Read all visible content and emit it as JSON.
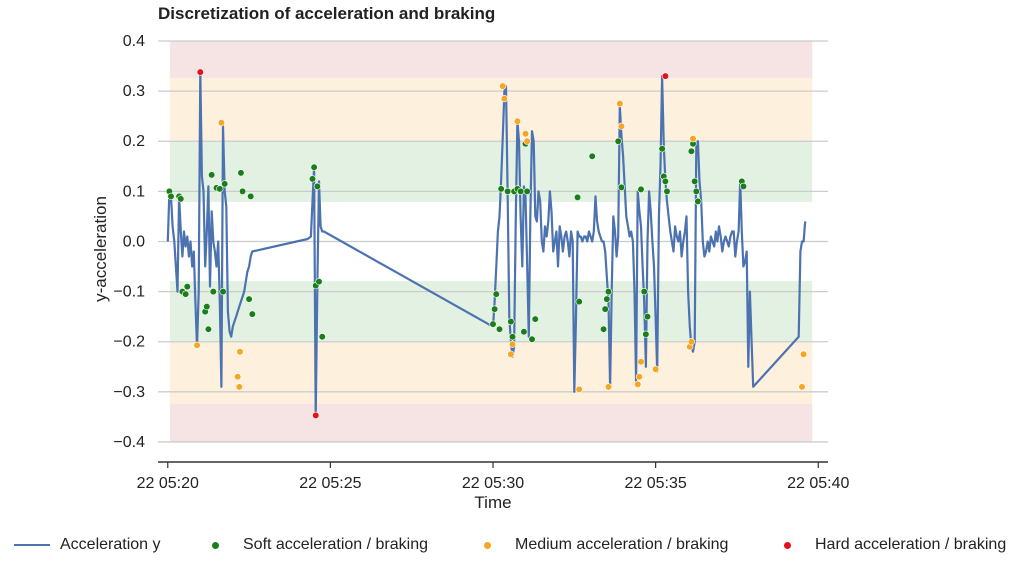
{
  "chart_data": {
    "type": "line",
    "title": "Discretization of acceleration and braking",
    "xlabel": "Time",
    "ylabel": "y-acceleration",
    "xlim_min": [
      -0.3,
      20.3
    ],
    "ylim": [
      -0.44,
      0.41
    ],
    "x_ticks": [
      0,
      5,
      10,
      15,
      20
    ],
    "x_tick_labels": [
      "22 05:20",
      "22 05:25",
      "22 05:30",
      "22 05:35",
      "22 05:40"
    ],
    "y_ticks": [
      0.4,
      0.3,
      0.2,
      0.1,
      0.0,
      -0.1,
      -0.2,
      -0.3,
      -0.4
    ],
    "y_tick_labels": [
      "0.4",
      "0.3",
      "0.2",
      "0.1",
      "0.0",
      "−0.1",
      "−0.2",
      "−0.3",
      "−0.4"
    ],
    "grid": "horizontal",
    "bands": [
      {
        "level": "hard",
        "y0": 0.325,
        "y1": 0.4,
        "color": "#f6e3e3"
      },
      {
        "level": "medium",
        "y0": 0.2,
        "y1": 0.325,
        "color": "#fdf1de"
      },
      {
        "level": "soft",
        "y0": 0.08,
        "y1": 0.2,
        "color": "#e3f1e2"
      },
      {
        "level": "soft",
        "y0": -0.2,
        "y1": -0.08,
        "color": "#e3f1e2"
      },
      {
        "level": "medium",
        "y0": -0.325,
        "y1": -0.2,
        "color": "#fdf1de"
      },
      {
        "level": "hard",
        "y0": -0.4,
        "y1": -0.325,
        "color": "#f6e3e3"
      }
    ],
    "bands_x_range_min": [
      0.08,
      19.8
    ],
    "series": [
      {
        "name": "Acceleration y",
        "color": "#4c72b0",
        "x_min": [
          0.0,
          0.05,
          0.1,
          0.15,
          0.2,
          0.25,
          0.3,
          0.35,
          0.4,
          0.45,
          0.5,
          0.55,
          0.6,
          0.65,
          0.7,
          0.75,
          0.8,
          0.85,
          0.9,
          0.95,
          1.0,
          1.05,
          1.1,
          1.15,
          1.2,
          1.25,
          1.3,
          1.35,
          1.4,
          1.45,
          1.5,
          1.55,
          1.6,
          1.65,
          1.7,
          1.75,
          1.8,
          1.85,
          1.9,
          1.95,
          2.0,
          2.05,
          2.1,
          2.15,
          2.2,
          2.25,
          2.3,
          2.35,
          2.4,
          2.45,
          2.5,
          2.55,
          2.6,
          4.3,
          4.4,
          4.45,
          4.5,
          4.55,
          4.6,
          4.65,
          4.7,
          4.75,
          4.8,
          10.0,
          10.05,
          10.1,
          10.15,
          10.2,
          10.25,
          10.3,
          10.35,
          10.4,
          10.45,
          10.5,
          10.55,
          10.6,
          10.65,
          10.7,
          10.75,
          10.8,
          10.85,
          10.9,
          10.95,
          11.0,
          11.05,
          11.1,
          11.15,
          11.2,
          11.25,
          11.3,
          11.35,
          11.4,
          11.45,
          11.5,
          11.55,
          11.6,
          11.65,
          11.7,
          11.75,
          11.8,
          11.85,
          11.9,
          11.95,
          12.0,
          12.05,
          12.1,
          12.15,
          12.2,
          12.25,
          12.3,
          12.35,
          12.4,
          12.45,
          12.5,
          12.55,
          12.6,
          12.65,
          12.7,
          12.75,
          12.8,
          12.85,
          12.9,
          12.95,
          13.0,
          13.05,
          13.1,
          13.15,
          13.2,
          13.25,
          13.3,
          13.35,
          13.4,
          13.45,
          13.5,
          13.55,
          13.6,
          13.65,
          13.7,
          13.75,
          13.8,
          13.85,
          13.9,
          13.95,
          14.0,
          14.05,
          14.1,
          14.15,
          14.2,
          14.25,
          14.3,
          14.35,
          14.4,
          14.45,
          14.5,
          14.55,
          14.6,
          14.65,
          14.7,
          14.75,
          14.8,
          14.85,
          14.9,
          14.95,
          15.0,
          15.05,
          15.1,
          15.15,
          15.2,
          15.25,
          15.3,
          15.35,
          15.4,
          15.45,
          15.5,
          15.55,
          15.6,
          15.65,
          15.7,
          15.75,
          15.8,
          15.85,
          15.9,
          15.95,
          16.0,
          16.05,
          16.1,
          16.15,
          16.2,
          16.25,
          16.3,
          16.35,
          16.4,
          16.45,
          16.5,
          16.55,
          16.6,
          16.65,
          16.7,
          16.75,
          16.8,
          16.85,
          16.9,
          16.95,
          17.0,
          17.05,
          17.1,
          17.15,
          17.2,
          17.25,
          17.3,
          17.35,
          17.4,
          17.45,
          17.5,
          17.55,
          17.6,
          17.65,
          17.7,
          17.75,
          17.8,
          17.85,
          17.9,
          17.95,
          18.0,
          19.4,
          19.45,
          19.5,
          19.55,
          19.6,
          19.65,
          19.7,
          19.75,
          19.8
        ],
        "values": [
          0.0,
          0.1,
          0.09,
          0.03,
          0.0,
          -0.05,
          -0.1,
          0.09,
          0.02,
          -0.03,
          0.02,
          -0.01,
          0.01,
          -0.03,
          0.0,
          -0.05,
          -0.02,
          -0.12,
          -0.21,
          -0.1,
          0.34,
          0.13,
          0.1,
          -0.05,
          0.02,
          0.11,
          -0.09,
          0.06,
          0.0,
          -0.02,
          -0.05,
          0.0,
          -0.12,
          -0.29,
          0.23,
          0.1,
          0.07,
          -0.14,
          -0.18,
          -0.19,
          -0.17,
          -0.16,
          -0.15,
          -0.14,
          -0.13,
          -0.12,
          -0.11,
          -0.1,
          -0.08,
          -0.06,
          -0.05,
          -0.03,
          -0.02,
          0.005,
          0.01,
          0.08,
          0.15,
          -0.35,
          -0.08,
          0.12,
          0.03,
          0.02,
          0.02,
          -0.17,
          -0.12,
          -0.05,
          0.02,
          0.05,
          0.12,
          0.21,
          0.3,
          0.31,
          0.1,
          -0.15,
          -0.2,
          -0.23,
          -0.21,
          0.05,
          0.24,
          0.2,
          0.05,
          -0.05,
          0.11,
          0.09,
          -0.05,
          -0.19,
          0.06,
          0.22,
          0.2,
          0.05,
          0.04,
          0.1,
          0.08,
          0.0,
          -0.02,
          0.03,
          0.01,
          0.04,
          0.1,
          0.06,
          -0.02,
          0.0,
          0.02,
          -0.05,
          0.03,
          0.01,
          -0.02,
          0.01,
          0.02,
          0.0,
          -0.03,
          0.02,
          0.0,
          -0.3,
          -0.16,
          0.02,
          0.01,
          0.01,
          0.0,
          0.01,
          0.01,
          0.0,
          0.02,
          0.01,
          0.0,
          0.02,
          0.09,
          0.04,
          0.02,
          0.01,
          0.0,
          0.0,
          -0.02,
          -0.07,
          -0.12,
          -0.29,
          -0.1,
          0.05,
          0.02,
          -0.03,
          0.01,
          0.27,
          0.21,
          0.17,
          0.11,
          0.05,
          0.03,
          0.01,
          0.02,
          0.0,
          -0.1,
          -0.28,
          0.1,
          0.06,
          0.03,
          -0.05,
          -0.12,
          -0.25,
          0.0,
          0.1,
          0.06,
          0.0,
          -0.05,
          -0.15,
          -0.26,
          0.05,
          0.15,
          0.33,
          0.19,
          0.12,
          0.08,
          0.05,
          0.02,
          0.0,
          -0.02,
          0.03,
          0.01,
          0.0,
          0.02,
          -0.03,
          0.0,
          0.02,
          0.05,
          -0.1,
          -0.17,
          -0.21,
          -0.22,
          -0.2,
          0.19,
          0.2,
          0.12,
          0.08,
          0.0,
          -0.03,
          -0.02,
          0.0,
          -0.02,
          0.01,
          0.0,
          -0.01,
          0.02,
          0.0,
          0.03,
          0.01,
          -0.02,
          0.0,
          0.01,
          0.0,
          -0.01,
          0.01,
          0.02,
          0.02,
          -0.03,
          0.0,
          0.02,
          0.12,
          0.02,
          -0.05,
          -0.04,
          -0.02,
          -0.25,
          -0.1,
          -0.2,
          -0.29,
          -0.19,
          -0.02,
          0.0,
          0.0,
          0.04
        ]
      }
    ],
    "scatter_series": [
      {
        "name": "Soft acceleration / braking",
        "color": "#1a7f1a",
        "x_min": [
          0.05,
          0.1,
          0.35,
          0.4,
          0.45,
          0.55,
          0.6,
          1.15,
          1.2,
          1.25,
          1.35,
          1.4,
          1.5,
          1.6,
          1.7,
          1.75,
          2.25,
          2.3,
          2.5,
          2.55,
          2.6,
          4.45,
          4.5,
          4.55,
          4.6,
          4.65,
          4.75,
          10.0,
          10.05,
          10.1,
          10.2,
          10.25,
          10.45,
          10.55,
          10.6,
          10.65,
          10.75,
          10.85,
          10.95,
          11.0,
          11.05,
          11.2,
          11.3,
          12.6,
          12.65,
          13.05,
          13.4,
          13.45,
          13.5,
          13.55,
          13.95,
          13.85,
          14.55,
          14.65,
          14.7,
          14.75,
          15.2,
          15.25,
          15.3,
          15.35,
          16.1,
          16.15,
          16.2,
          16.25,
          16.3,
          17.65,
          17.7
        ],
        "values": [
          0.1,
          0.09,
          0.09,
          0.085,
          -0.1,
          -0.105,
          -0.09,
          -0.14,
          -0.13,
          -0.175,
          0.133,
          -0.1,
          0.107,
          0.105,
          -0.1,
          0.115,
          0.137,
          0.1,
          -0.115,
          0.09,
          -0.145,
          0.125,
          0.148,
          -0.088,
          0.11,
          -0.08,
          -0.19,
          -0.165,
          -0.135,
          -0.105,
          -0.175,
          0.105,
          0.1,
          -0.16,
          -0.19,
          0.1,
          0.105,
          0.1,
          -0.18,
          0.195,
          0.1,
          -0.195,
          -0.155,
          0.088,
          -0.12,
          0.17,
          -0.175,
          -0.135,
          -0.115,
          -0.1,
          0.108,
          0.2,
          0.104,
          -0.1,
          -0.185,
          -0.15,
          0.185,
          0.13,
          0.12,
          0.1,
          0.18,
          0.195,
          0.12,
          0.1,
          0.08,
          0.12,
          0.11
        ]
      },
      {
        "name": "Medium acceleration / braking",
        "color": "#f5a623",
        "x_min": [
          0.9,
          2.15,
          2.2,
          2.22,
          1.65,
          10.3,
          10.35,
          10.55,
          10.6,
          10.75,
          11.0,
          11.05,
          12.65,
          13.55,
          13.9,
          13.95,
          14.45,
          14.55,
          14.5,
          15.0,
          16.05,
          16.1,
          16.15,
          19.5,
          19.55
        ],
        "values": [
          -0.207,
          -0.27,
          -0.29,
          -0.22,
          0.237,
          0.31,
          0.285,
          -0.225,
          -0.205,
          0.24,
          0.215,
          0.2,
          -0.295,
          -0.29,
          0.275,
          0.23,
          -0.285,
          -0.24,
          -0.27,
          -0.255,
          -0.21,
          -0.2,
          0.205,
          -0.29,
          -0.225
        ]
      },
      {
        "name": "Hard acceleration / braking",
        "color": "#e3121a",
        "x_min": [
          1.0,
          4.55,
          15.3
        ],
        "values": [
          0.338,
          -0.347,
          0.33
        ]
      }
    ],
    "legend": {
      "placement": "bottom",
      "entries": [
        "Acceleration y",
        "Soft acceleration / braking",
        "Medium acceleration / braking",
        "Hard acceleration / braking"
      ]
    }
  }
}
